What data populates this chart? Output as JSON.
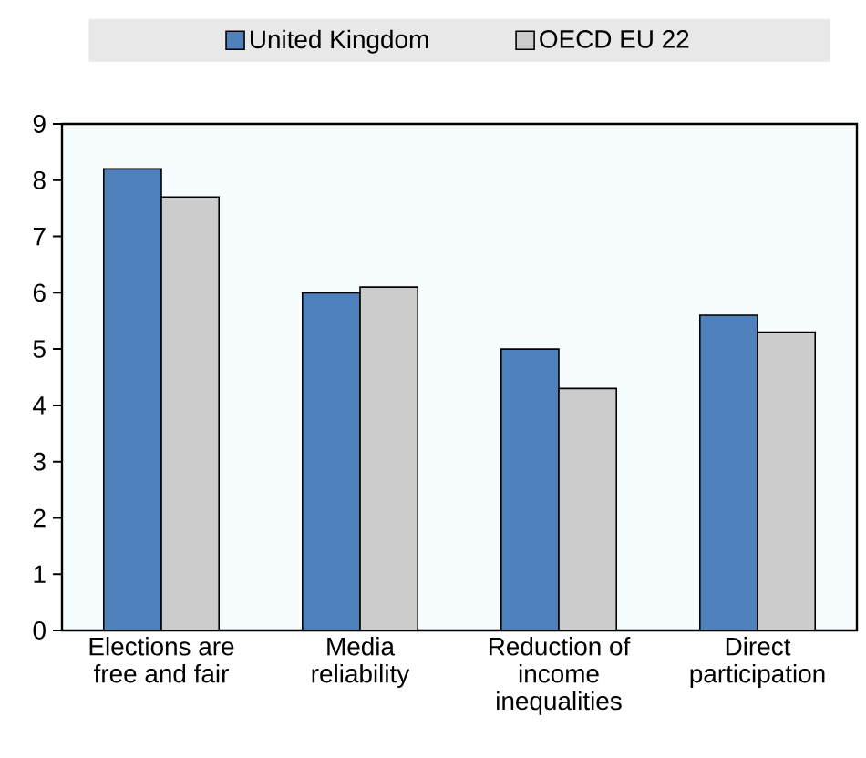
{
  "chart_data": {
    "type": "bar",
    "categories": [
      "Elections are free and fair",
      "Media reliability",
      "Reduction of income inequalities",
      "Direct participation"
    ],
    "series": [
      {
        "name": "United Kingdom",
        "color": "#4f81bd",
        "values": [
          8.2,
          6.0,
          5.0,
          5.6
        ]
      },
      {
        "name": "OECD EU 22",
        "color": "#cccccc",
        "values": [
          7.7,
          6.1,
          4.3,
          5.3
        ]
      }
    ],
    "ylim": [
      0,
      9
    ],
    "yticks": [
      0,
      1,
      2,
      3,
      4,
      5,
      6,
      7,
      8,
      9
    ],
    "legend": "top",
    "grid": false
  }
}
